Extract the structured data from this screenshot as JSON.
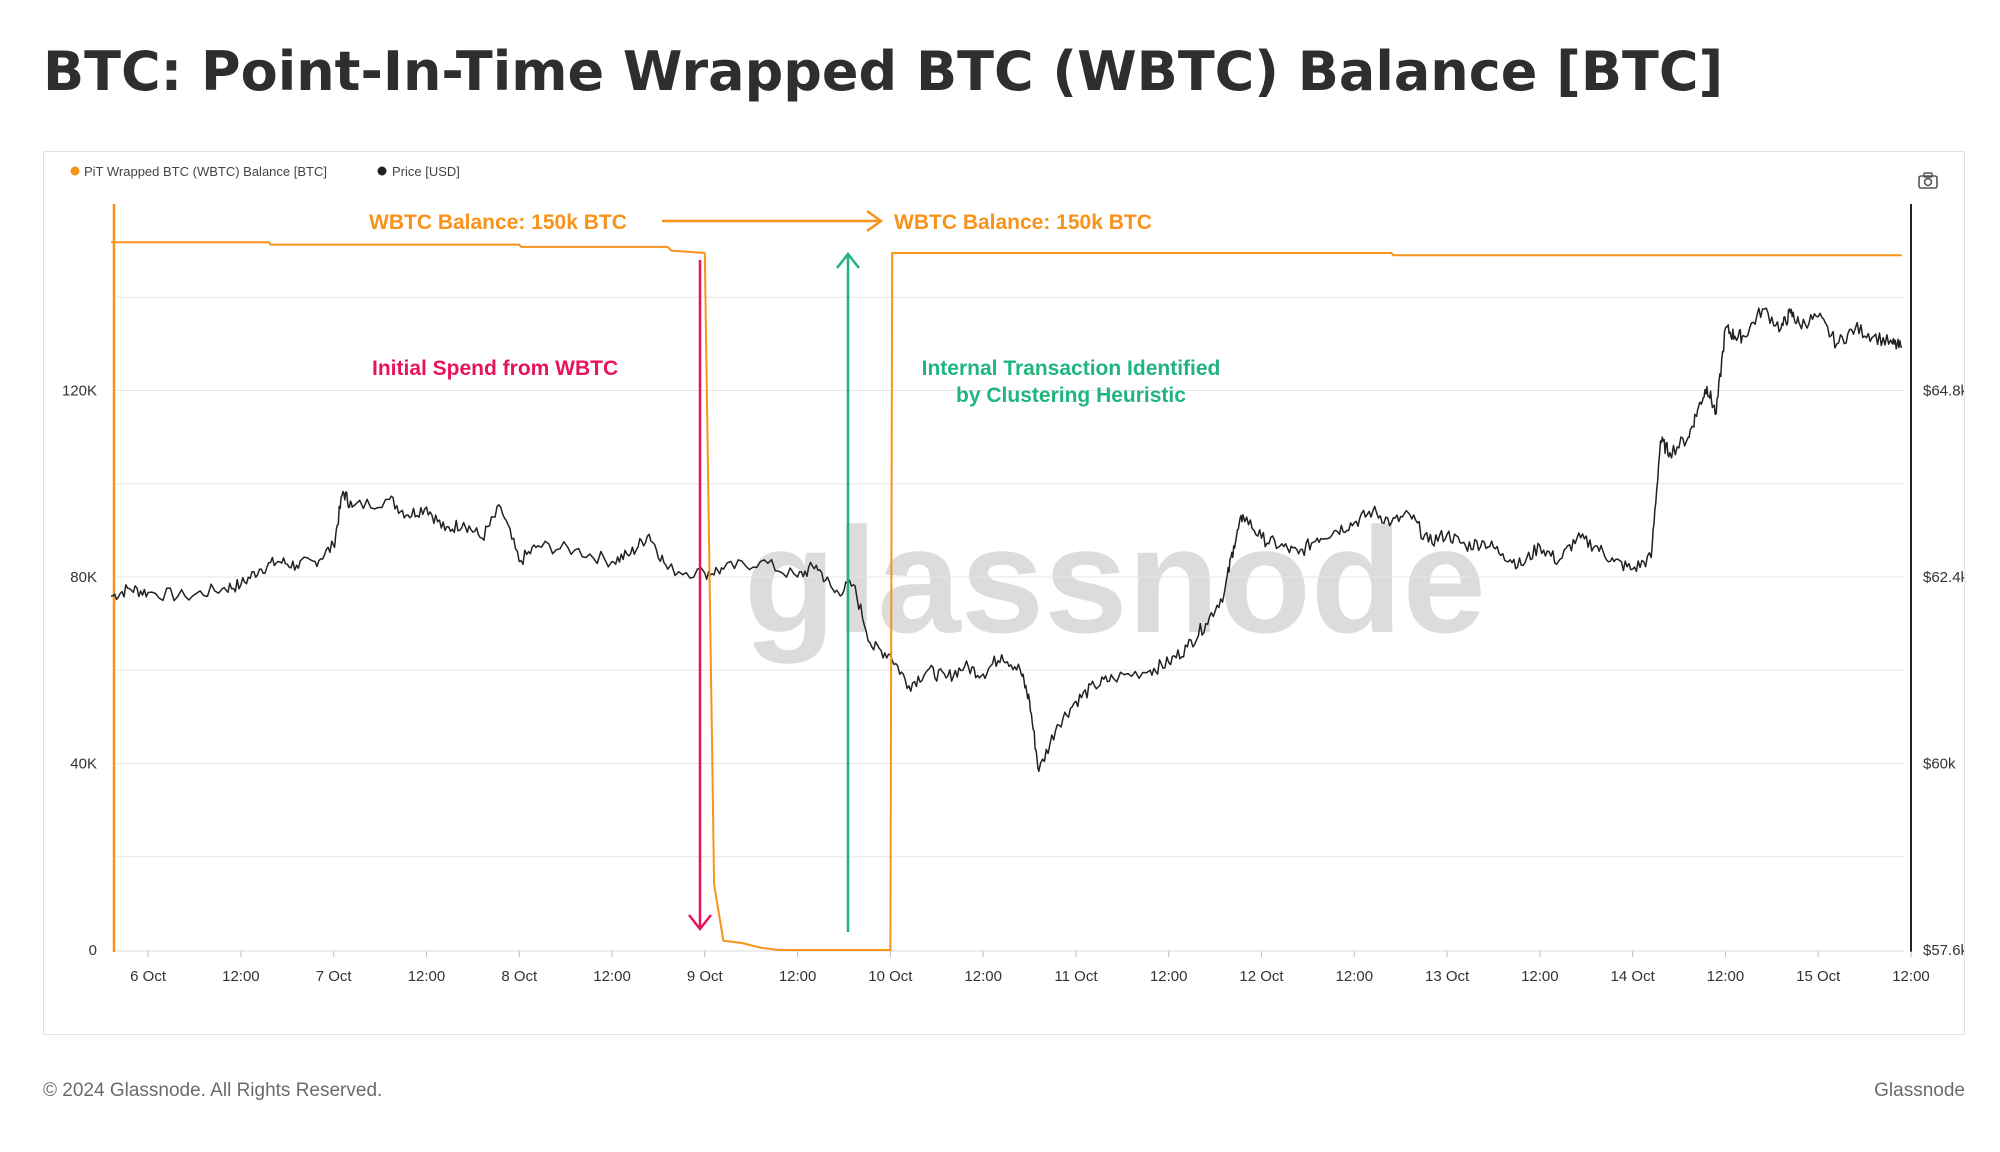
{
  "title": "BTC: Point-In-Time Wrapped BTC (WBTC) Balance [BTC]",
  "footer": {
    "copyright": "© 2024 Glassnode. All Rights Reserved.",
    "brand": "Glassnode"
  },
  "watermark": "glassnode",
  "icons": {
    "camera": "camera-icon"
  },
  "colors": {
    "balance": "#f7931a",
    "price": "#222222",
    "spend": "#e8135f",
    "internal": "#1fb57e"
  },
  "chart_data": {
    "type": "line",
    "legend": [
      {
        "name": "PiT Wrapped BTC (WBTC) Balance [BTC]",
        "color": "#f7931a"
      },
      {
        "name": "Price [USD]",
        "color": "#222222"
      }
    ],
    "legend_position": "top-left",
    "x_ticks": [
      "6 Oct",
      "12:00",
      "7 Oct",
      "12:00",
      "8 Oct",
      "12:00",
      "9 Oct",
      "12:00",
      "10 Oct",
      "12:00",
      "11 Oct",
      "12:00",
      "12 Oct",
      "12:00",
      "13 Oct",
      "12:00",
      "14 Oct",
      "12:00",
      "15 Oct",
      "12:00"
    ],
    "x_range_days": [
      -0.2,
      9.5
    ],
    "y_left": {
      "ticks": [
        "0",
        "40K",
        "80K",
        "120K"
      ],
      "tick_values": [
        0,
        40000,
        80000,
        120000
      ],
      "range": [
        0,
        160000
      ]
    },
    "y_right": {
      "ticks": [
        "$57.6k",
        "$60k",
        "$62.4k",
        "$64.8k"
      ],
      "tick_values": [
        57600,
        60000,
        62400,
        64800
      ],
      "range": [
        57600,
        67200
      ]
    },
    "grid": true,
    "balance": {
      "name": "PiT Wrapped BTC (WBTC) Balance [BTC]",
      "points": [
        [
          -0.2,
          151800
        ],
        [
          0.65,
          151800
        ],
        [
          0.66,
          151300
        ],
        [
          2.0,
          151300
        ],
        [
          2.01,
          150800
        ],
        [
          2.8,
          150800
        ],
        [
          2.82,
          150000
        ],
        [
          3.0,
          149500
        ],
        [
          3.05,
          14000
        ],
        [
          3.1,
          2000
        ],
        [
          3.2,
          1500
        ],
        [
          3.3,
          500
        ],
        [
          3.4,
          0
        ],
        [
          4.0,
          0
        ],
        [
          4.01,
          149500
        ],
        [
          6.7,
          149500
        ],
        [
          6.71,
          149000
        ],
        [
          9.45,
          149000
        ]
      ]
    },
    "price": {
      "name": "Price [USD]",
      "points": [
        [
          -0.2,
          62150
        ],
        [
          -0.1,
          62250
        ],
        [
          0.0,
          62200
        ],
        [
          0.2,
          62150
        ],
        [
          0.4,
          62250
        ],
        [
          0.5,
          62300
        ],
        [
          0.6,
          62500
        ],
        [
          0.7,
          62600
        ],
        [
          0.8,
          62550
        ],
        [
          0.9,
          62600
        ],
        [
          1.0,
          62800
        ],
        [
          1.05,
          63500
        ],
        [
          1.1,
          63300
        ],
        [
          1.3,
          63400
        ],
        [
          1.4,
          63200
        ],
        [
          1.5,
          63300
        ],
        [
          1.6,
          63000
        ],
        [
          1.7,
          63100
        ],
        [
          1.8,
          62900
        ],
        [
          1.9,
          63300
        ],
        [
          2.0,
          62600
        ],
        [
          2.1,
          62800
        ],
        [
          2.3,
          62750
        ],
        [
          2.5,
          62600
        ],
        [
          2.6,
          62700
        ],
        [
          2.7,
          62950
        ],
        [
          2.8,
          62500
        ],
        [
          3.0,
          62450
        ],
        [
          3.1,
          62500
        ],
        [
          3.3,
          62600
        ],
        [
          3.5,
          62400
        ],
        [
          3.6,
          62550
        ],
        [
          3.7,
          62200
        ],
        [
          3.8,
          62300
        ],
        [
          3.9,
          61500
        ],
        [
          4.0,
          61400
        ],
        [
          4.1,
          61000
        ],
        [
          4.2,
          61200
        ],
        [
          4.3,
          61100
        ],
        [
          4.4,
          61250
        ],
        [
          4.5,
          61150
        ],
        [
          4.6,
          61400
        ],
        [
          4.7,
          61200
        ],
        [
          4.75,
          60800
        ],
        [
          4.8,
          59900
        ],
        [
          4.9,
          60500
        ],
        [
          5.0,
          60800
        ],
        [
          5.1,
          61000
        ],
        [
          5.2,
          61100
        ],
        [
          5.4,
          61200
        ],
        [
          5.5,
          61300
        ],
        [
          5.6,
          61500
        ],
        [
          5.7,
          61800
        ],
        [
          5.8,
          62200
        ],
        [
          5.85,
          62800
        ],
        [
          5.9,
          63200
        ],
        [
          6.0,
          62900
        ],
        [
          6.1,
          62800
        ],
        [
          6.2,
          62700
        ],
        [
          6.3,
          62900
        ],
        [
          6.4,
          63000
        ],
        [
          6.5,
          63100
        ],
        [
          6.6,
          63250
        ],
        [
          6.7,
          63100
        ],
        [
          6.8,
          63200
        ],
        [
          6.9,
          62850
        ],
        [
          7.0,
          62950
        ],
        [
          7.1,
          62800
        ],
        [
          7.2,
          62850
        ],
        [
          7.3,
          62700
        ],
        [
          7.4,
          62550
        ],
        [
          7.5,
          62800
        ],
        [
          7.6,
          62600
        ],
        [
          7.7,
          62900
        ],
        [
          7.8,
          62800
        ],
        [
          7.9,
          62600
        ],
        [
          8.0,
          62500
        ],
        [
          8.1,
          62650
        ],
        [
          8.15,
          64150
        ],
        [
          8.2,
          64000
        ],
        [
          8.3,
          64200
        ],
        [
          8.35,
          64550
        ],
        [
          8.4,
          64850
        ],
        [
          8.45,
          64500
        ],
        [
          8.5,
          65600
        ],
        [
          8.55,
          65500
        ],
        [
          8.6,
          65500
        ],
        [
          8.7,
          65850
        ],
        [
          8.8,
          65600
        ],
        [
          8.85,
          65800
        ],
        [
          8.9,
          65650
        ],
        [
          9.0,
          65750
        ],
        [
          9.1,
          65400
        ],
        [
          9.2,
          65600
        ],
        [
          9.3,
          65500
        ],
        [
          9.4,
          65400
        ],
        [
          9.45,
          65350
        ]
      ]
    },
    "annotations": [
      {
        "text": "WBTC Balance: 150k BTC",
        "color": "#f7931a"
      },
      {
        "text": "WBTC Balance: 150k BTC",
        "color": "#f7931a"
      },
      {
        "text": "Initial Spend from WBTC",
        "color": "#e8135f"
      },
      {
        "line1": "Internal Transaction Identified",
        "line2": "by Clustering Heuristic",
        "color": "#1fb57e"
      }
    ]
  }
}
